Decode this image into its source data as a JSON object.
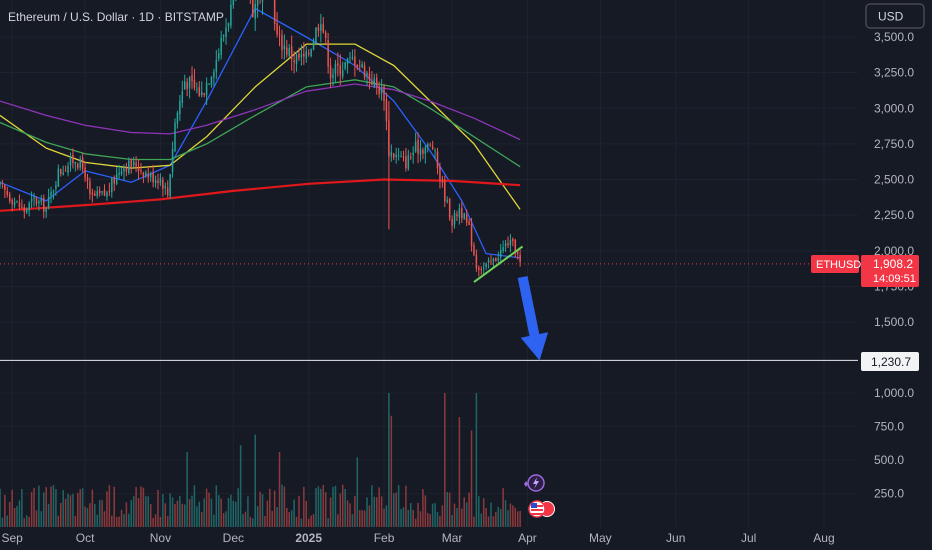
{
  "header": {
    "title": "Ethereum / U.S. Dollar · 1D · BITSTAMP",
    "currency": "USD"
  },
  "price_scale": {
    "ticks": [
      "3,500.0",
      "3,250.0",
      "3,000.0",
      "2,750.0",
      "2,500.0",
      "2,250.0",
      "2,000.0",
      "1,750.0",
      "1,500.0"
    ],
    "tick_values": [
      3500,
      3250,
      3000,
      2750,
      2500,
      2250,
      2000,
      1750,
      1500
    ]
  },
  "volume_scale": {
    "ticks": [
      "1,000.0",
      "750.0",
      "500.0",
      "250.0"
    ],
    "tick_values": [
      1000,
      750,
      500,
      250
    ]
  },
  "time_axis": {
    "labels": [
      "Sep",
      "Oct",
      "Nov",
      "Dec",
      "2025",
      "Feb",
      "Mar",
      "Apr",
      "May",
      "Jun",
      "Jul",
      "Aug"
    ],
    "dates": [
      "2024-09-01",
      "2024-10-01",
      "2024-11-01",
      "2024-12-01",
      "2025-01-01",
      "2025-02-01",
      "2025-03-01",
      "2025-04-01",
      "2025-05-01",
      "2025-06-01",
      "2025-07-01",
      "2025-08-01"
    ]
  },
  "price_badge": {
    "symbol": "ETHUSD",
    "price": "1,908.2",
    "countdown": "14:09:51"
  },
  "level_badge": {
    "value": "1,230.7"
  },
  "colors": {
    "background": "#161a25",
    "up": "#26a69a",
    "down": "#ef5350",
    "ma_fast": "#2962ff",
    "ma_mid": "#e0d53a",
    "ma_slow": "#3fa556",
    "ma_long": "#8e34b8",
    "ma_200": "#e0181b",
    "arrow": "#2d63f0",
    "support_line": "#6fd35a"
  },
  "chart_data": {
    "type": "candlestick",
    "symbol": "ETHUSD",
    "timeframe": "1D",
    "exchange": "BITSTAMP",
    "x_range": [
      "2024-08-27",
      "2025-08-15"
    ],
    "ylim": [
      1000,
      3700
    ],
    "last_price": 1908.2,
    "target_level": 1230.7,
    "price_path": [
      [
        "2024-08-27",
        2450
      ],
      [
        "2024-09-06",
        2280
      ],
      [
        "2024-09-10",
        2360
      ],
      [
        "2024-09-15",
        2300
      ],
      [
        "2024-09-20",
        2550
      ],
      [
        "2024-09-27",
        2650
      ],
      [
        "2024-10-01",
        2550
      ],
      [
        "2024-10-03",
        2370
      ],
      [
        "2024-10-10",
        2400
      ],
      [
        "2024-10-16",
        2600
      ],
      [
        "2024-10-22",
        2600
      ],
      [
        "2024-10-28",
        2520
      ],
      [
        "2024-11-01",
        2510
      ],
      [
        "2024-11-04",
        2400
      ],
      [
        "2024-11-07",
        2900
      ],
      [
        "2024-11-11",
        3200
      ],
      [
        "2024-11-18",
        3100
      ],
      [
        "2024-11-24",
        3350
      ],
      [
        "2024-11-30",
        3700
      ],
      [
        "2024-12-06",
        3950
      ],
      [
        "2024-12-09",
        3700
      ],
      [
        "2024-12-16",
        3950
      ],
      [
        "2024-12-19",
        3500
      ],
      [
        "2024-12-26",
        3350
      ],
      [
        "2024-12-31",
        3350
      ],
      [
        "2025-01-06",
        3650
      ],
      [
        "2025-01-10",
        3250
      ],
      [
        "2025-01-15",
        3300
      ],
      [
        "2025-01-20",
        3350
      ],
      [
        "2025-01-27",
        3200
      ],
      [
        "2025-02-01",
        3100
      ],
      [
        "2025-02-03",
        2700
      ],
      [
        "2025-02-10",
        2620
      ],
      [
        "2025-02-14",
        2720
      ],
      [
        "2025-02-21",
        2730
      ],
      [
        "2025-02-25",
        2450
      ],
      [
        "2025-03-01",
        2200
      ],
      [
        "2025-03-04",
        2300
      ],
      [
        "2025-03-08",
        2150
      ],
      [
        "2025-03-11",
        1900
      ],
      [
        "2025-03-14",
        1880
      ],
      [
        "2025-03-18",
        1930
      ],
      [
        "2025-03-24",
        2060
      ],
      [
        "2025-03-27",
        2020
      ],
      [
        "2025-03-29",
        1908
      ]
    ],
    "moving_averages": [
      {
        "name": "MA fast",
        "color": "#2962ff",
        "points": [
          [
            "2024-08-27",
            2480
          ],
          [
            "2024-09-15",
            2350
          ],
          [
            "2024-10-01",
            2560
          ],
          [
            "2024-10-20",
            2480
          ],
          [
            "2024-11-05",
            2600
          ],
          [
            "2024-11-20",
            3050
          ],
          [
            "2024-12-10",
            3700
          ],
          [
            "2024-12-31",
            3500
          ],
          [
            "2025-01-20",
            3300
          ],
          [
            "2025-02-05",
            3050
          ],
          [
            "2025-02-20",
            2700
          ],
          [
            "2025-03-05",
            2350
          ],
          [
            "2025-03-15",
            1980
          ],
          [
            "2025-03-29",
            1950
          ]
        ]
      },
      {
        "name": "MA mid",
        "color": "#e0d53a",
        "points": [
          [
            "2024-08-27",
            2950
          ],
          [
            "2024-09-15",
            2720
          ],
          [
            "2024-10-01",
            2620
          ],
          [
            "2024-10-20",
            2580
          ],
          [
            "2024-11-05",
            2600
          ],
          [
            "2024-11-20",
            2800
          ],
          [
            "2024-12-10",
            3150
          ],
          [
            "2024-12-31",
            3450
          ],
          [
            "2025-01-20",
            3450
          ],
          [
            "2025-02-05",
            3300
          ],
          [
            "2025-02-20",
            3050
          ],
          [
            "2025-03-10",
            2750
          ],
          [
            "2025-03-29",
            2290
          ]
        ]
      },
      {
        "name": "MA slow",
        "color": "#3fa556",
        "points": [
          [
            "2024-08-27",
            2900
          ],
          [
            "2024-09-15",
            2760
          ],
          [
            "2024-10-01",
            2680
          ],
          [
            "2024-10-20",
            2640
          ],
          [
            "2024-11-05",
            2640
          ],
          [
            "2024-11-20",
            2750
          ],
          [
            "2024-12-10",
            2950
          ],
          [
            "2024-12-31",
            3150
          ],
          [
            "2025-01-20",
            3200
          ],
          [
            "2025-02-05",
            3150
          ],
          [
            "2025-02-20",
            3000
          ],
          [
            "2025-03-10",
            2800
          ],
          [
            "2025-03-29",
            2590
          ]
        ]
      },
      {
        "name": "MA long",
        "color": "#8e34b8",
        "points": [
          [
            "2024-08-27",
            3050
          ],
          [
            "2024-09-15",
            2950
          ],
          [
            "2024-10-01",
            2880
          ],
          [
            "2024-10-20",
            2830
          ],
          [
            "2024-11-05",
            2820
          ],
          [
            "2024-11-20",
            2880
          ],
          [
            "2024-12-10",
            2990
          ],
          [
            "2024-12-31",
            3120
          ],
          [
            "2025-01-20",
            3170
          ],
          [
            "2025-02-05",
            3130
          ],
          [
            "2025-02-20",
            3050
          ],
          [
            "2025-03-10",
            2930
          ],
          [
            "2025-03-29",
            2780
          ]
        ]
      },
      {
        "name": "MA 200",
        "color": "#e0181b",
        "points": [
          [
            "2024-08-27",
            2280
          ],
          [
            "2024-10-01",
            2320
          ],
          [
            "2024-11-01",
            2360
          ],
          [
            "2024-12-01",
            2420
          ],
          [
            "2025-01-01",
            2470
          ],
          [
            "2025-02-01",
            2500
          ],
          [
            "2025-03-01",
            2490
          ],
          [
            "2025-03-29",
            2460
          ]
        ]
      }
    ],
    "support_line": {
      "from": [
        "2025-03-10",
        1780
      ],
      "to": [
        "2025-03-30",
        2030
      ]
    },
    "projection_arrow": {
      "from": [
        "2025-03-30",
        1900
      ],
      "to": [
        "2025-04-06",
        1230
      ]
    },
    "volume_ylim": [
      0,
      1200
    ],
    "volume_spikes": [
      [
        "2024-11-12",
        560
      ],
      [
        "2024-12-04",
        610
      ],
      [
        "2024-12-10",
        690
      ],
      [
        "2024-12-20",
        560
      ],
      [
        "2025-01-21",
        520
      ],
      [
        "2025-02-03",
        1000
      ],
      [
        "2025-02-04",
        830
      ],
      [
        "2025-02-26",
        1000
      ],
      [
        "2025-03-04",
        820
      ],
      [
        "2025-03-09",
        720
      ],
      [
        "2025-03-11",
        1000
      ]
    ]
  }
}
